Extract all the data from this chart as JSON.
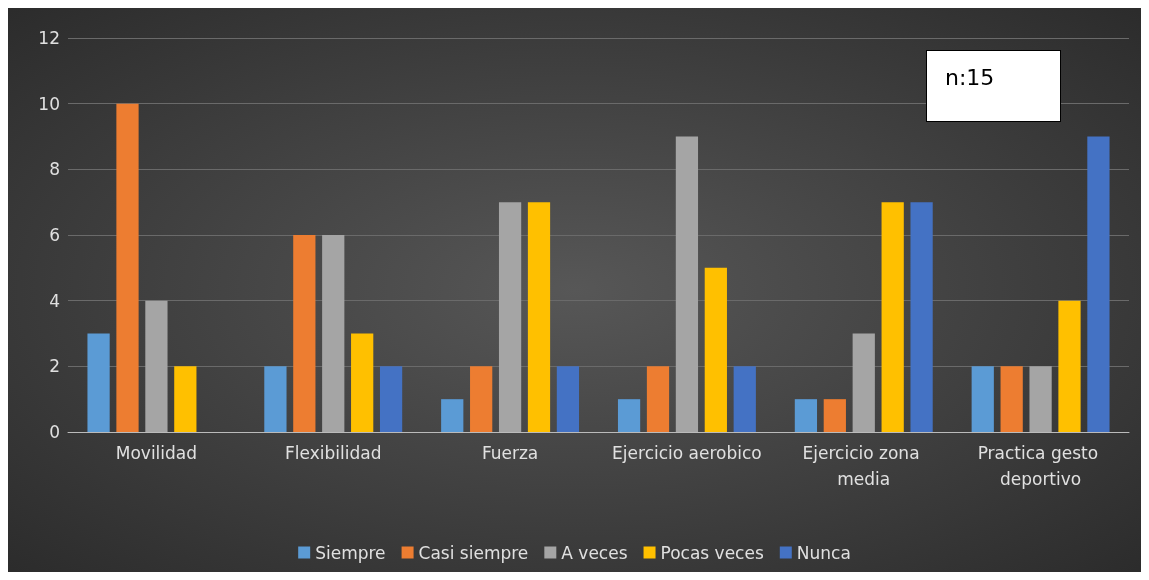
{
  "chart_data": {
    "type": "bar",
    "categories": [
      "Movilidad",
      "Flexibilidad",
      "Fuerza",
      "Ejercicio aerobico",
      "Ejercicio zona media",
      "Practica gesto deportivo"
    ],
    "series": [
      {
        "name": "Siempre",
        "color": "#5b9bd5",
        "values": [
          3,
          2,
          1,
          1,
          1,
          2
        ]
      },
      {
        "name": "Casi siempre",
        "color": "#ed7d31",
        "values": [
          10,
          6,
          2,
          2,
          1,
          2
        ]
      },
      {
        "name": "A veces",
        "color": "#a5a5a5",
        "values": [
          4,
          6,
          7,
          9,
          3,
          2
        ]
      },
      {
        "name": "Pocas veces",
        "color": "#ffc000",
        "values": [
          2,
          3,
          7,
          5,
          7,
          4
        ]
      },
      {
        "name": "Nunca",
        "color": "#4472c4",
        "values": [
          0,
          2,
          2,
          2,
          7,
          9
        ]
      }
    ],
    "ylim": [
      0,
      12
    ],
    "yticks": [
      0,
      2,
      4,
      6,
      8,
      10,
      12
    ],
    "grid": "y",
    "legend": "bottom",
    "annotations": [
      "n:15"
    ]
  }
}
